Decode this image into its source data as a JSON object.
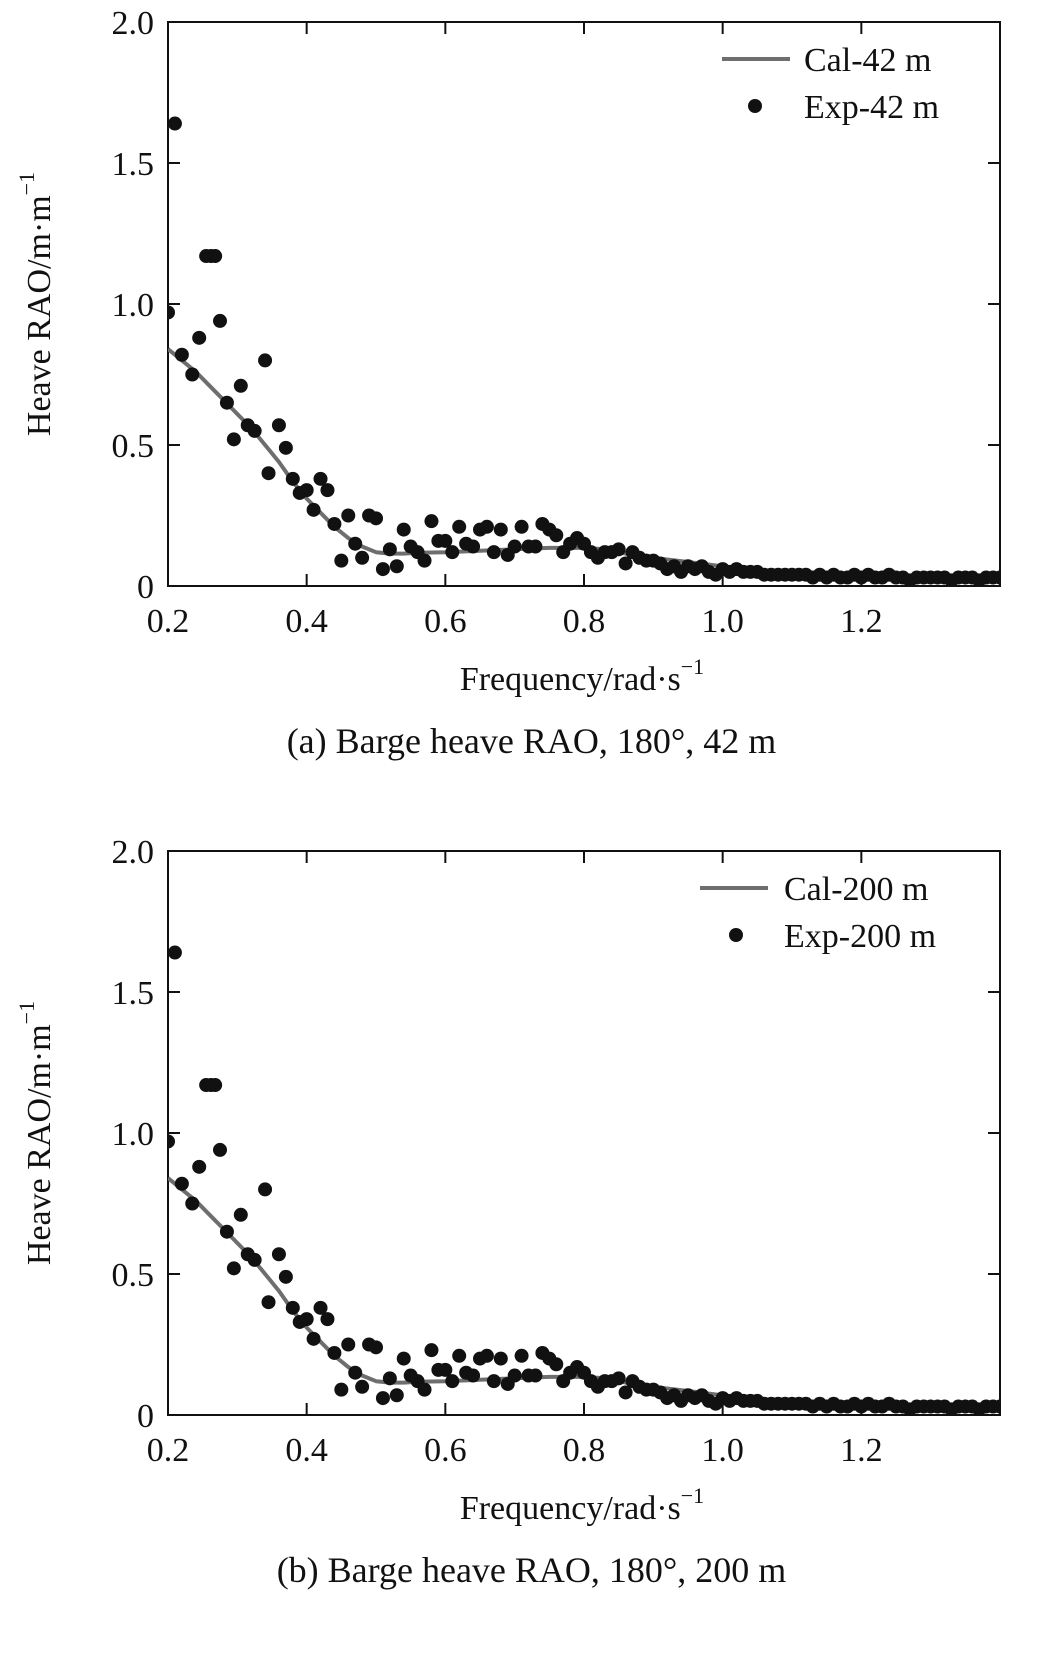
{
  "chart_data": [
    {
      "type": "line",
      "id": "a",
      "caption": "(a) Barge heave RAO, 180°, 42 m",
      "xlabel": "Frequency/rad·s",
      "xlabel_sup": "−1",
      "ylabel": "Heave RAO/m·m",
      "ylabel_sup": "−1",
      "xlim": [
        0.2,
        1.4
      ],
      "ylim": [
        0,
        2.0
      ],
      "xticks": [
        0.2,
        0.4,
        0.6,
        0.8,
        1.0,
        1.2
      ],
      "xtick_labels": [
        "0.2",
        "0.4",
        "0.6",
        "0.8",
        "1.0",
        "1.2"
      ],
      "yticks": [
        0,
        0.5,
        1.0,
        1.5,
        2.0
      ],
      "ytick_labels": [
        "0",
        "0.5",
        "1.0",
        "1.5",
        "2.0"
      ],
      "legend_position": "top-right",
      "series": [
        {
          "name": "Cal-42 m",
          "kind": "line",
          "color": "#6e6e6e",
          "x": [
            0.2,
            0.22,
            0.24,
            0.26,
            0.28,
            0.3,
            0.32,
            0.34,
            0.36,
            0.38,
            0.4,
            0.42,
            0.44,
            0.46,
            0.48,
            0.5,
            0.52,
            0.54,
            0.56,
            0.6,
            0.65,
            0.7,
            0.75,
            0.8,
            0.83,
            0.86,
            0.9,
            0.95,
            1.0,
            1.05,
            1.1,
            1.15,
            1.2,
            1.25,
            1.3,
            1.35,
            1.4
          ],
          "y": [
            0.84,
            0.8,
            0.76,
            0.71,
            0.66,
            0.61,
            0.56,
            0.5,
            0.44,
            0.37,
            0.31,
            0.26,
            0.21,
            0.17,
            0.14,
            0.12,
            0.115,
            0.115,
            0.118,
            0.12,
            0.125,
            0.13,
            0.135,
            0.135,
            0.13,
            0.115,
            0.1,
            0.085,
            0.07,
            0.055,
            0.045,
            0.04,
            0.035,
            0.032,
            0.03,
            0.028,
            0.027
          ]
        },
        {
          "name": "Exp-42 m",
          "kind": "scatter",
          "color": "#111111",
          "x": [
            0.2,
            0.21,
            0.22,
            0.235,
            0.245,
            0.255,
            0.262,
            0.268,
            0.275,
            0.285,
            0.295,
            0.305,
            0.315,
            0.325,
            0.34,
            0.345,
            0.36,
            0.37,
            0.38,
            0.39,
            0.4,
            0.41,
            0.42,
            0.43,
            0.44,
            0.45,
            0.46,
            0.47,
            0.48,
            0.49,
            0.5,
            0.51,
            0.52,
            0.53,
            0.54,
            0.55,
            0.56,
            0.57,
            0.58,
            0.59,
            0.6,
            0.61,
            0.62,
            0.63,
            0.64,
            0.65,
            0.66,
            0.67,
            0.68,
            0.69,
            0.7,
            0.71,
            0.72,
            0.73,
            0.74,
            0.75,
            0.76,
            0.77,
            0.78,
            0.79,
            0.8,
            0.81,
            0.82,
            0.83,
            0.84,
            0.85,
            0.86,
            0.87,
            0.88,
            0.89,
            0.9,
            0.91,
            0.92,
            0.93,
            0.94,
            0.95,
            0.96,
            0.97,
            0.98,
            0.99,
            1.0,
            1.01,
            1.02,
            1.03,
            1.04,
            1.05,
            1.06,
            1.07,
            1.08,
            1.09,
            1.1,
            1.11,
            1.12,
            1.13,
            1.14,
            1.15,
            1.16,
            1.17,
            1.18,
            1.19,
            1.2,
            1.21,
            1.22,
            1.23,
            1.24,
            1.25,
            1.26,
            1.27,
            1.28,
            1.29,
            1.3,
            1.31,
            1.32,
            1.33,
            1.34,
            1.35,
            1.36,
            1.37,
            1.38,
            1.39,
            1.4
          ],
          "y": [
            0.97,
            1.64,
            0.82,
            0.75,
            0.88,
            1.17,
            1.17,
            1.17,
            0.94,
            0.65,
            0.52,
            0.71,
            0.57,
            0.55,
            0.8,
            0.4,
            0.57,
            0.49,
            0.38,
            0.33,
            0.34,
            0.27,
            0.38,
            0.34,
            0.22,
            0.09,
            0.25,
            0.15,
            0.1,
            0.25,
            0.24,
            0.06,
            0.13,
            0.07,
            0.2,
            0.14,
            0.12,
            0.09,
            0.23,
            0.16,
            0.16,
            0.12,
            0.21,
            0.15,
            0.14,
            0.2,
            0.21,
            0.12,
            0.2,
            0.11,
            0.14,
            0.21,
            0.14,
            0.14,
            0.22,
            0.2,
            0.18,
            0.12,
            0.15,
            0.17,
            0.15,
            0.12,
            0.1,
            0.12,
            0.12,
            0.13,
            0.08,
            0.12,
            0.1,
            0.09,
            0.09,
            0.08,
            0.06,
            0.07,
            0.05,
            0.07,
            0.06,
            0.07,
            0.05,
            0.04,
            0.06,
            0.05,
            0.06,
            0.05,
            0.05,
            0.05,
            0.04,
            0.04,
            0.04,
            0.04,
            0.04,
            0.04,
            0.04,
            0.03,
            0.04,
            0.03,
            0.04,
            0.03,
            0.03,
            0.04,
            0.03,
            0.04,
            0.03,
            0.03,
            0.04,
            0.03,
            0.03,
            0.02,
            0.03,
            0.03,
            0.03,
            0.03,
            0.03,
            0.02,
            0.03,
            0.03,
            0.03,
            0.02,
            0.03,
            0.03,
            0.03
          ]
        }
      ]
    },
    {
      "type": "line",
      "id": "b",
      "caption": "(b) Barge heave RAO, 180°, 200 m",
      "xlabel": "Frequency/rad·s",
      "xlabel_sup": "−1",
      "ylabel": "Heave RAO/m·m",
      "ylabel_sup": "−1",
      "xlim": [
        0.2,
        1.4
      ],
      "ylim": [
        0,
        2.0
      ],
      "xticks": [
        0.2,
        0.4,
        0.6,
        0.8,
        1.0,
        1.2
      ],
      "xtick_labels": [
        "0.2",
        "0.4",
        "0.6",
        "0.8",
        "1.0",
        "1.2"
      ],
      "yticks": [
        0,
        0.5,
        1.0,
        1.5,
        2.0
      ],
      "ytick_labels": [
        "0",
        "0.5",
        "1.0",
        "1.5",
        "2.0"
      ],
      "legend_position": "top-right",
      "series": [
        {
          "name": "Cal-200 m",
          "kind": "line",
          "color": "#6e6e6e",
          "x": [
            0.2,
            0.22,
            0.24,
            0.26,
            0.28,
            0.3,
            0.32,
            0.34,
            0.36,
            0.38,
            0.4,
            0.42,
            0.44,
            0.46,
            0.48,
            0.5,
            0.52,
            0.54,
            0.56,
            0.6,
            0.65,
            0.7,
            0.75,
            0.8,
            0.83,
            0.86,
            0.9,
            0.95,
            1.0,
            1.05,
            1.1,
            1.15,
            1.2,
            1.25,
            1.3,
            1.35,
            1.4
          ],
          "y": [
            0.84,
            0.8,
            0.76,
            0.71,
            0.66,
            0.61,
            0.56,
            0.5,
            0.44,
            0.37,
            0.31,
            0.26,
            0.21,
            0.17,
            0.14,
            0.12,
            0.115,
            0.115,
            0.118,
            0.12,
            0.125,
            0.13,
            0.135,
            0.135,
            0.13,
            0.115,
            0.1,
            0.085,
            0.07,
            0.055,
            0.045,
            0.04,
            0.035,
            0.032,
            0.03,
            0.028,
            0.027
          ]
        },
        {
          "name": "Exp-200 m",
          "kind": "scatter",
          "color": "#111111",
          "x": [
            0.2,
            0.21,
            0.22,
            0.235,
            0.245,
            0.255,
            0.262,
            0.268,
            0.275,
            0.285,
            0.295,
            0.305,
            0.315,
            0.325,
            0.34,
            0.345,
            0.36,
            0.37,
            0.38,
            0.39,
            0.4,
            0.41,
            0.42,
            0.43,
            0.44,
            0.45,
            0.46,
            0.47,
            0.48,
            0.49,
            0.5,
            0.51,
            0.52,
            0.53,
            0.54,
            0.55,
            0.56,
            0.57,
            0.58,
            0.59,
            0.6,
            0.61,
            0.62,
            0.63,
            0.64,
            0.65,
            0.66,
            0.67,
            0.68,
            0.69,
            0.7,
            0.71,
            0.72,
            0.73,
            0.74,
            0.75,
            0.76,
            0.77,
            0.78,
            0.79,
            0.8,
            0.81,
            0.82,
            0.83,
            0.84,
            0.85,
            0.86,
            0.87,
            0.88,
            0.89,
            0.9,
            0.91,
            0.92,
            0.93,
            0.94,
            0.95,
            0.96,
            0.97,
            0.98,
            0.99,
            1.0,
            1.01,
            1.02,
            1.03,
            1.04,
            1.05,
            1.06,
            1.07,
            1.08,
            1.09,
            1.1,
            1.11,
            1.12,
            1.13,
            1.14,
            1.15,
            1.16,
            1.17,
            1.18,
            1.19,
            1.2,
            1.21,
            1.22,
            1.23,
            1.24,
            1.25,
            1.26,
            1.27,
            1.28,
            1.29,
            1.3,
            1.31,
            1.32,
            1.33,
            1.34,
            1.35,
            1.36,
            1.37,
            1.38,
            1.39,
            1.4
          ],
          "y": [
            0.97,
            1.64,
            0.82,
            0.75,
            0.88,
            1.17,
            1.17,
            1.17,
            0.94,
            0.65,
            0.52,
            0.71,
            0.57,
            0.55,
            0.8,
            0.4,
            0.57,
            0.49,
            0.38,
            0.33,
            0.34,
            0.27,
            0.38,
            0.34,
            0.22,
            0.09,
            0.25,
            0.15,
            0.1,
            0.25,
            0.24,
            0.06,
            0.13,
            0.07,
            0.2,
            0.14,
            0.12,
            0.09,
            0.23,
            0.16,
            0.16,
            0.12,
            0.21,
            0.15,
            0.14,
            0.2,
            0.21,
            0.12,
            0.2,
            0.11,
            0.14,
            0.21,
            0.14,
            0.14,
            0.22,
            0.2,
            0.18,
            0.12,
            0.15,
            0.17,
            0.15,
            0.12,
            0.1,
            0.12,
            0.12,
            0.13,
            0.08,
            0.12,
            0.1,
            0.09,
            0.09,
            0.08,
            0.06,
            0.07,
            0.05,
            0.07,
            0.06,
            0.07,
            0.05,
            0.04,
            0.06,
            0.05,
            0.06,
            0.05,
            0.05,
            0.05,
            0.04,
            0.04,
            0.04,
            0.04,
            0.04,
            0.04,
            0.04,
            0.03,
            0.04,
            0.03,
            0.04,
            0.03,
            0.03,
            0.04,
            0.03,
            0.04,
            0.03,
            0.03,
            0.04,
            0.03,
            0.03,
            0.02,
            0.03,
            0.03,
            0.03,
            0.03,
            0.03,
            0.02,
            0.03,
            0.03,
            0.03,
            0.02,
            0.03,
            0.03,
            0.03
          ]
        }
      ]
    }
  ]
}
